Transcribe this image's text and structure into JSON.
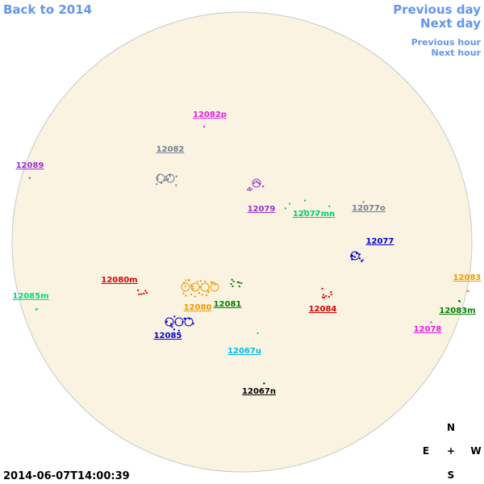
{
  "nav": {
    "back": "Back to 2014",
    "previous_day": "Previous day",
    "next_day": "Next day",
    "previous_hour": "Previous hour",
    "next_hour": "Next hour"
  },
  "timestamp": "2014-06-07T14:00:39",
  "compass": {
    "north": "N",
    "east": "E",
    "center": "+",
    "west": "W",
    "south": "S"
  },
  "regions": [
    {
      "label": "12082p",
      "color": "#e020e0"
    },
    {
      "label": "12082",
      "color": "#708090"
    },
    {
      "label": "12089",
      "color": "#9932cc"
    },
    {
      "label": "12079",
      "color": "#9932cc"
    },
    {
      "label": "12077mn",
      "color": "#00cc77"
    },
    {
      "label": "12077o",
      "color": "#708090"
    },
    {
      "label": "12077",
      "color": "#0000cc"
    },
    {
      "label": "12080m",
      "color": "#dd0000"
    },
    {
      "label": "12085m",
      "color": "#00dd77"
    },
    {
      "label": "12080",
      "color": "#ee9900"
    },
    {
      "label": "12081",
      "color": "#008000"
    },
    {
      "label": "12084",
      "color": "#dd0000"
    },
    {
      "label": "12083",
      "color": "#ee9900"
    },
    {
      "label": "12083m",
      "color": "#008000"
    },
    {
      "label": "12078",
      "color": "#e020e0"
    },
    {
      "label": "12085",
      "color": "#0000cc"
    },
    {
      "label": "12067u",
      "color": "#00bbee"
    },
    {
      "label": "12067n",
      "color": "#000000"
    }
  ]
}
